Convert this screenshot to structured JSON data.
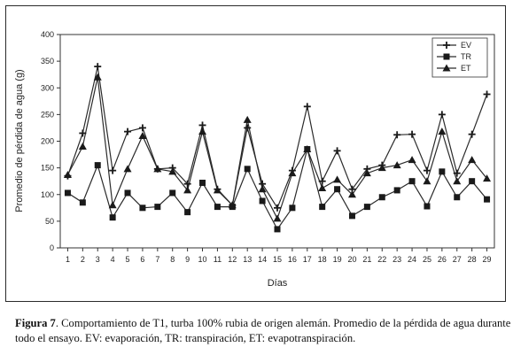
{
  "chart_data": {
    "type": "line",
    "xlabel": "Días",
    "ylabel": "Promedio de pérdida de agua (g)",
    "x": [
      1,
      2,
      3,
      4,
      5,
      6,
      7,
      8,
      9,
      10,
      11,
      12,
      13,
      14,
      15,
      16,
      17,
      18,
      19,
      20,
      21,
      22,
      23,
      24,
      25,
      26,
      27,
      28,
      29
    ],
    "ylim": [
      0,
      400
    ],
    "yticks": [
      0,
      50,
      100,
      150,
      200,
      250,
      300,
      350,
      400
    ],
    "grid": false,
    "legend_position": "top-right",
    "series": [
      {
        "name": "EV",
        "marker": "cross",
        "values": [
          135,
          215,
          340,
          145,
          218,
          225,
          148,
          150,
          120,
          230,
          110,
          80,
          225,
          120,
          75,
          145,
          265,
          125,
          182,
          110,
          148,
          155,
          212,
          213,
          145,
          250,
          140,
          213,
          288
        ]
      },
      {
        "name": "TR",
        "marker": "square",
        "values": [
          103,
          85,
          155,
          57,
          103,
          75,
          77,
          103,
          67,
          122,
          77,
          77,
          148,
          88,
          35,
          75,
          185,
          77,
          110,
          60,
          77,
          95,
          108,
          125,
          78,
          143,
          95,
          125,
          91
        ]
      },
      {
        "name": "ET",
        "marker": "triangle",
        "values": [
          137,
          190,
          320,
          80,
          148,
          210,
          148,
          143,
          108,
          218,
          108,
          80,
          240,
          110,
          55,
          140,
          185,
          112,
          128,
          100,
          140,
          150,
          155,
          165,
          125,
          218,
          125,
          165,
          130
        ]
      }
    ]
  },
  "caption": {
    "label": "Figura 7",
    "text": ". Comportamiento de T1, turba 100% rubia de origen alemán. Promedio de la pérdida de agua durante todo el ensayo. EV: evaporación, TR: transpiración, ET: evapotranspiración."
  }
}
